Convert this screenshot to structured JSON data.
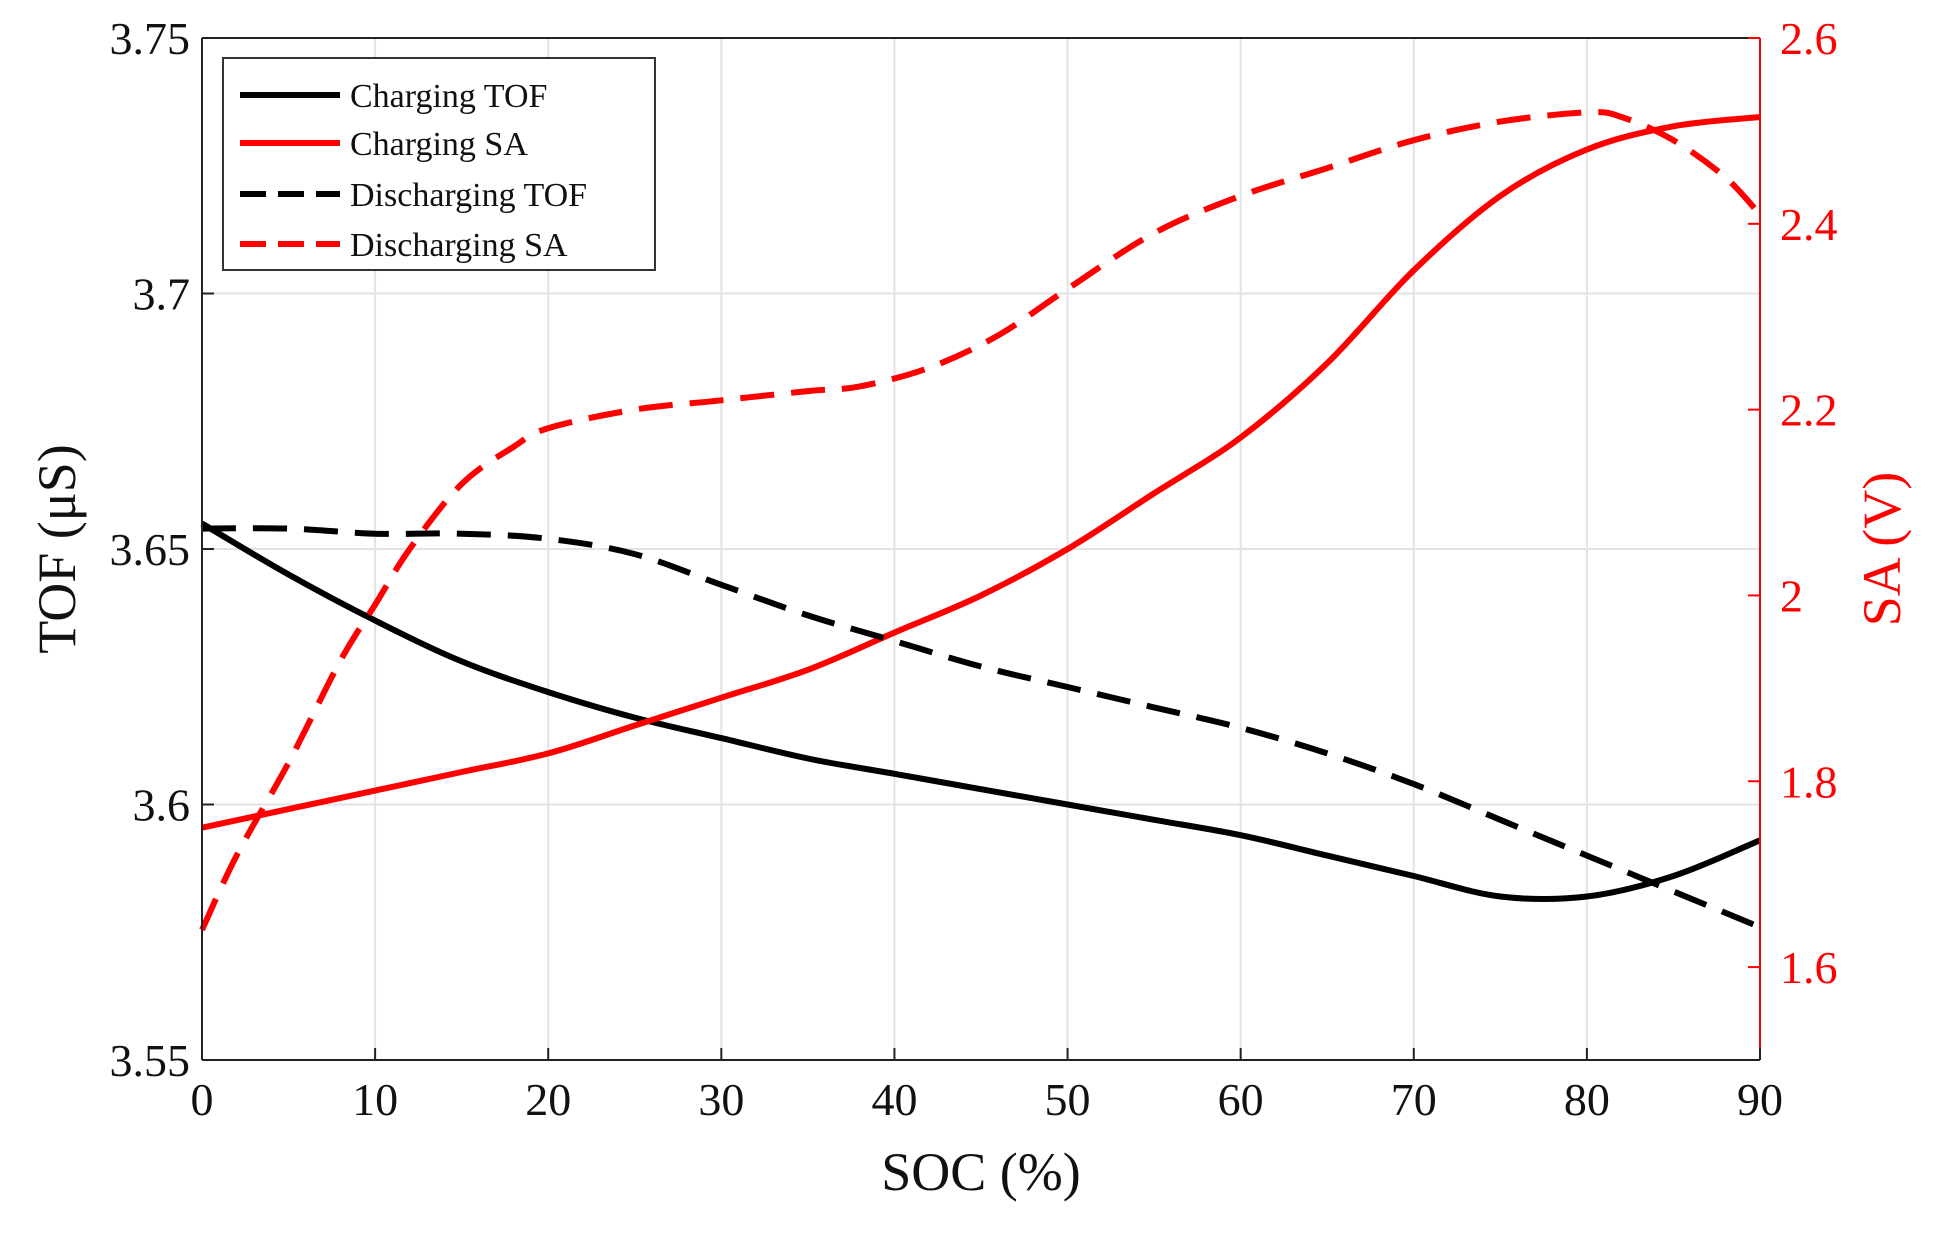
{
  "chart_data": {
    "type": "line",
    "xlabel": "SOC (%)",
    "ylabel_left": "TOF (μS)",
    "ylabel_right": "SA (V)",
    "xlim": [
      0,
      90
    ],
    "ylim_left": [
      3.55,
      3.75
    ],
    "ylim_right": [
      1.5,
      2.6
    ],
    "x_ticks": [
      "0",
      "10",
      "20",
      "30",
      "40",
      "50",
      "60",
      "70",
      "80",
      "90"
    ],
    "y_left_ticks": [
      "3.55",
      "3.6",
      "3.65",
      "3.7",
      "3.75"
    ],
    "y_right_ticks": [
      "1.6",
      "1.8",
      "2",
      "2.2",
      "2.4",
      "2.6"
    ],
    "grid": true,
    "legend_position": "top-left",
    "series": [
      {
        "name": "Charging TOF",
        "axis": "left",
        "color": "#000000",
        "dash": "solid",
        "x": [
          0,
          5,
          10,
          15,
          20,
          25,
          30,
          35,
          40,
          45,
          50,
          55,
          60,
          65,
          70,
          75,
          80,
          85,
          90
        ],
        "y": [
          3.655,
          3.645,
          3.636,
          3.628,
          3.622,
          3.617,
          3.613,
          3.609,
          3.606,
          3.603,
          3.6,
          3.597,
          3.594,
          3.59,
          3.586,
          3.582,
          3.582,
          3.586,
          3.593
        ]
      },
      {
        "name": "Charging SA",
        "axis": "right",
        "color": "#ff0000",
        "dash": "solid",
        "x": [
          0,
          5,
          10,
          15,
          20,
          25,
          30,
          35,
          40,
          45,
          50,
          55,
          60,
          65,
          70,
          75,
          80,
          85,
          90
        ],
        "y": [
          1.75,
          1.77,
          1.79,
          1.81,
          1.83,
          1.86,
          1.89,
          1.92,
          1.96,
          2.0,
          2.05,
          2.11,
          2.17,
          2.25,
          2.35,
          2.43,
          2.48,
          2.505,
          2.515
        ]
      },
      {
        "name": "Discharging TOF",
        "axis": "left",
        "color": "#000000",
        "dash": "dashed",
        "x": [
          0,
          5,
          10,
          15,
          20,
          25,
          30,
          35,
          40,
          45,
          50,
          55,
          60,
          65,
          70,
          75,
          80,
          85,
          90
        ],
        "y": [
          3.654,
          3.654,
          3.653,
          3.653,
          3.652,
          3.649,
          3.643,
          3.637,
          3.632,
          3.627,
          3.623,
          3.619,
          3.615,
          3.61,
          3.604,
          3.597,
          3.59,
          3.583,
          3.576
        ]
      },
      {
        "name": "Discharging SA",
        "axis": "right",
        "color": "#ff0000",
        "dash": "dashed",
        "x": [
          0,
          2,
          5,
          8,
          10,
          12,
          15,
          18,
          20,
          25,
          30,
          35,
          38,
          42,
          46,
          50,
          55,
          60,
          65,
          70,
          75,
          80,
          82,
          85,
          88,
          90
        ],
        "y": [
          1.64,
          1.72,
          1.82,
          1.93,
          1.99,
          2.05,
          2.12,
          2.16,
          2.18,
          2.2,
          2.21,
          2.22,
          2.225,
          2.245,
          2.28,
          2.33,
          2.39,
          2.43,
          2.46,
          2.49,
          2.51,
          2.52,
          2.515,
          2.49,
          2.45,
          2.41
        ]
      }
    ]
  }
}
